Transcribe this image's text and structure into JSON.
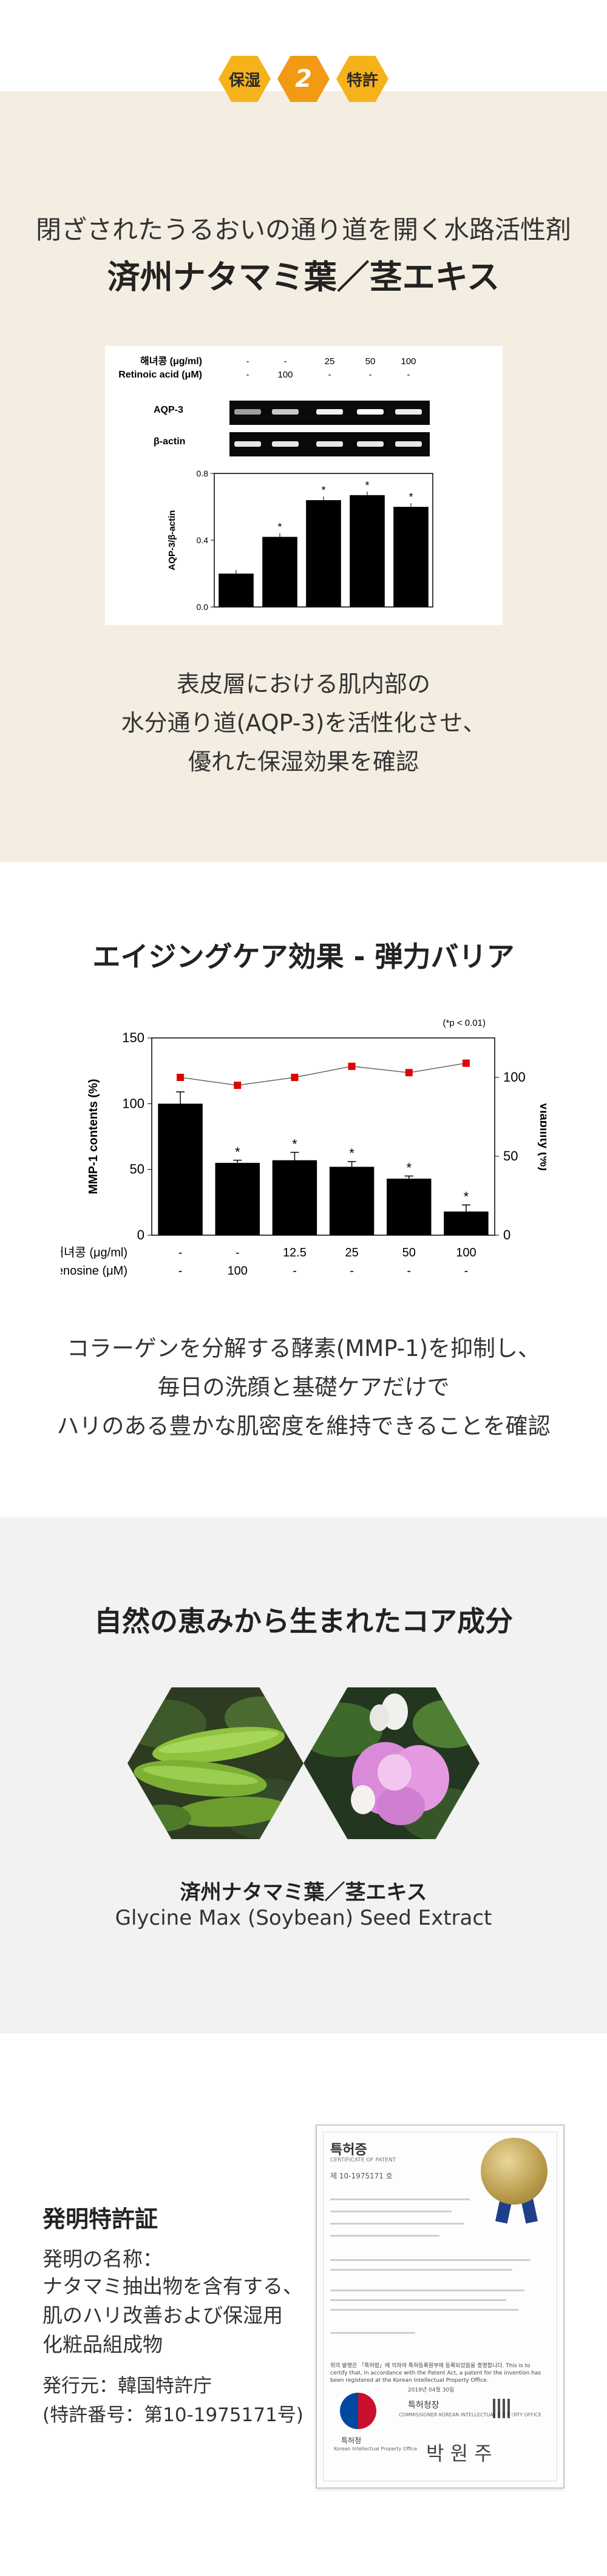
{
  "badges": {
    "left": "保湿",
    "number": "2",
    "right": "特許"
  },
  "section1": {
    "subtitle": "閉ざされたうるおいの通り道を開く水路活性剤",
    "title": "済州ナタマミ葉／茎エキス",
    "figure": {
      "row1_label": "해녀콩 (μg/ml)",
      "row2_label": "Retinoic acid (μM)",
      "row1_values": [
        "-",
        "-",
        "25",
        "50",
        "100"
      ],
      "row2_values": [
        "-",
        "100",
        "-",
        "-",
        "-"
      ],
      "band1_label": "AQP-3",
      "band2_label": "β-actin",
      "ylabel": "AQP-3/β-actin",
      "yticks": [
        "0.0",
        "0.4",
        "0.8"
      ]
    },
    "description": [
      "表皮層における肌内部の",
      "水分通り道(AQP-3)を活性化させ、",
      "優れた保湿効果を確認"
    ]
  },
  "chart_data": [
    {
      "type": "bar",
      "categories": [
        "1",
        "2",
        "3",
        "4",
        "5"
      ],
      "values": [
        0.2,
        0.42,
        0.64,
        0.67,
        0.6
      ],
      "significant": [
        false,
        true,
        true,
        true,
        true
      ],
      "ylabel": "AQP-3/β-actin",
      "ylim": [
        0,
        0.8
      ],
      "yticks": [
        0.0,
        0.4,
        0.8
      ]
    },
    {
      "type": "bar",
      "categories": [
        "1",
        "2",
        "3",
        "4",
        "5",
        "6"
      ],
      "series": [
        {
          "name": "MMP-1 contents (%)",
          "values": [
            100,
            55,
            57,
            52,
            43,
            18
          ],
          "errors": [
            9,
            2,
            6,
            4,
            2,
            5
          ],
          "significant": [
            false,
            true,
            true,
            true,
            true,
            true
          ]
        },
        {
          "name": "Viability (%)",
          "values": [
            100,
            95,
            100,
            107,
            103,
            109
          ]
        }
      ],
      "ylabel": "MMP-1 contents (%)",
      "y2label": "Viability (%)",
      "ylim": [
        0,
        150
      ],
      "y2lim": [
        0,
        125
      ],
      "yticks": [
        0,
        50,
        100,
        150
      ],
      "y2ticks": [
        0,
        50,
        100
      ],
      "row1_label": "해녀콩 (μg/ml)",
      "row2_label": "Adenosine (μM)",
      "row1_values": [
        "-",
        "-",
        "12.5",
        "25",
        "50",
        "100"
      ],
      "row2_values": [
        "-",
        "100",
        "-",
        "-",
        "-",
        "-"
      ],
      "annotation": "(*p < 0.01)"
    }
  ],
  "section2": {
    "title": "エイジングケア効果 - 弾力バリア",
    "description": [
      "コラーゲンを分解する酵素(MMP-1)を抑制し、",
      "毎日の洗顔と基礎ケアだけで",
      "ハリのある豊かな肌密度を維持できることを確認"
    ]
  },
  "section3": {
    "title": "自然の恵みから生まれたコア成分",
    "name": "済州ナタマミ葉／茎エキス",
    "scientific": "Glycine Max (Soybean) Seed Extract"
  },
  "section4": {
    "title": "発明特許証",
    "label": "発明の名称：",
    "lines": [
      "ナタマミ抽出物を含有する、",
      "肌のハリ改善および保湿用",
      "化粧品組成物"
    ],
    "issuer": "発行元：韓国特許庁",
    "number": "(特許番号：第10-1975171号)",
    "certificate": {
      "title": "특허증",
      "subtitle": "CERTIFICATE OF PATENT",
      "patent_no": "제 10-1975171 호",
      "office": "특허청장",
      "office_en": "COMMISSIONER KOREAN INTELLECTUAL PROPERTY OFFICE",
      "logo_label": "특허청",
      "logo_sub": "Korean Intellectual Property Office",
      "signature": "박 원 주",
      "body": "위의 발명은 「특허법」에 의하여 특허등록원부에 등록되었음을 증명합니다. This is to certify that, in accordance with the Patent Act, a patent for the invention has been registered at the Korean Intellectual Property Office.",
      "date": "2019년 04월 30일"
    }
  },
  "colors": {
    "badge": "#f6b21b",
    "badge_number": "#f29a14",
    "beige": "#f4ede1",
    "gray": "#f2f2f2",
    "marker": "#e00000"
  }
}
